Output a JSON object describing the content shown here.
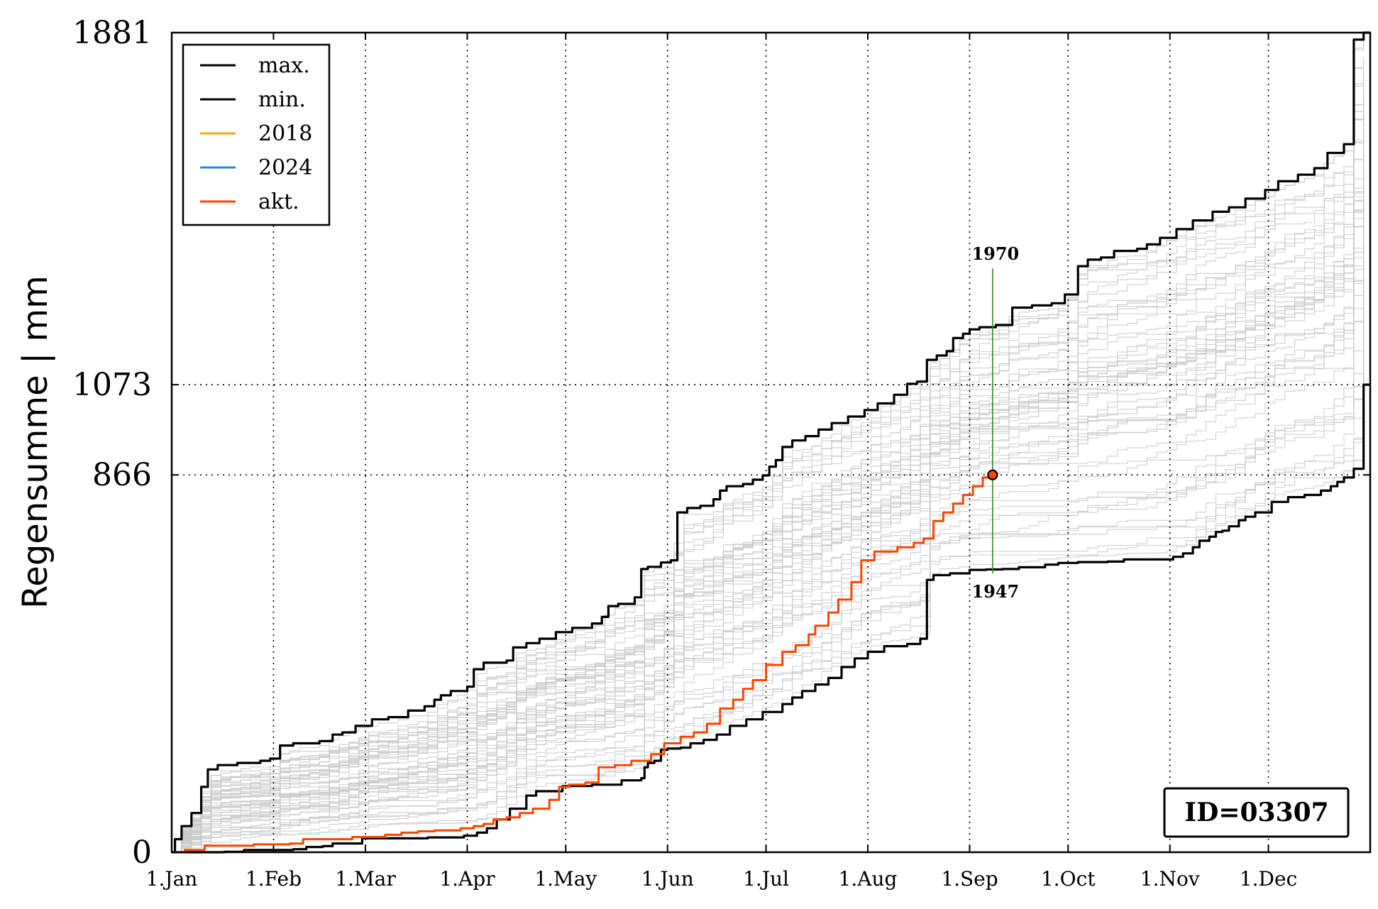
{
  "chart_data": {
    "type": "line",
    "title": "",
    "ylabel": "Regensumme | mm",
    "xlabel": "",
    "xlim": [
      0,
      365
    ],
    "ylim": [
      0,
      1881
    ],
    "yticks": [
      0,
      866,
      1073,
      1881
    ],
    "ytick_labels": [
      "0",
      "866",
      "1073",
      "1881"
    ],
    "xticks": [
      0,
      31,
      59,
      90,
      120,
      151,
      181,
      212,
      243,
      273,
      304,
      334
    ],
    "xtick_labels": [
      "1.Jan",
      "1.Feb",
      "1.Mar",
      "1.Apr",
      "1.May",
      "1.Jun",
      "1.Jul",
      "1.Aug",
      "1.Sep",
      "1.Oct",
      "1.Nov",
      "1.Dec"
    ],
    "grid": true,
    "legend_position": "top-left",
    "legend": [
      {
        "label": "max.",
        "color": "#000000"
      },
      {
        "label": "min.",
        "color": "#000000"
      },
      {
        "label": "2018",
        "color": "#f5a623"
      },
      {
        "label": "2024",
        "color": "#1e88e5"
      },
      {
        "label": "akt.",
        "color": "#ff4500"
      }
    ],
    "series": [
      {
        "name": "max.",
        "color": "#000000",
        "points": [
          [
            0,
            0
          ],
          [
            1,
            30
          ],
          [
            3,
            60
          ],
          [
            6,
            90
          ],
          [
            9,
            150
          ],
          [
            11,
            190
          ],
          [
            14,
            200
          ],
          [
            20,
            205
          ],
          [
            27,
            210
          ],
          [
            30,
            215
          ],
          [
            33,
            245
          ],
          [
            37,
            250
          ],
          [
            45,
            255
          ],
          [
            49,
            270
          ],
          [
            52,
            275
          ],
          [
            56,
            290
          ],
          [
            61,
            305
          ],
          [
            66,
            310
          ],
          [
            72,
            325
          ],
          [
            77,
            335
          ],
          [
            80,
            350
          ],
          [
            82,
            360
          ],
          [
            85,
            370
          ],
          [
            90,
            380
          ],
          [
            92,
            420
          ],
          [
            95,
            435
          ],
          [
            102,
            440
          ],
          [
            104,
            470
          ],
          [
            108,
            480
          ],
          [
            112,
            490
          ],
          [
            117,
            505
          ],
          [
            122,
            515
          ],
          [
            128,
            525
          ],
          [
            131,
            540
          ],
          [
            133,
            565
          ],
          [
            136,
            570
          ],
          [
            141,
            585
          ],
          [
            143,
            650
          ],
          [
            145,
            655
          ],
          [
            149,
            665
          ],
          [
            152,
            670
          ],
          [
            154,
            780
          ],
          [
            157,
            790
          ],
          [
            161,
            795
          ],
          [
            165,
            810
          ],
          [
            167,
            830
          ],
          [
            169,
            840
          ],
          [
            174,
            845
          ],
          [
            177,
            855
          ],
          [
            180,
            865
          ],
          [
            182,
            885
          ],
          [
            184,
            900
          ],
          [
            186,
            930
          ],
          [
            189,
            945
          ],
          [
            193,
            955
          ],
          [
            197,
            970
          ],
          [
            201,
            985
          ],
          [
            206,
            1000
          ],
          [
            211,
            1015
          ],
          [
            215,
            1030
          ],
          [
            220,
            1050
          ],
          [
            224,
            1075
          ],
          [
            227,
            1080
          ],
          [
            230,
            1130
          ],
          [
            233,
            1140
          ],
          [
            236,
            1150
          ],
          [
            238,
            1180
          ],
          [
            241,
            1190
          ],
          [
            243,
            1200
          ],
          [
            246,
            1205
          ],
          [
            251,
            1210
          ],
          [
            256,
            1250
          ],
          [
            262,
            1255
          ],
          [
            268,
            1260
          ],
          [
            272,
            1280
          ],
          [
            276,
            1345
          ],
          [
            279,
            1360
          ],
          [
            283,
            1365
          ],
          [
            287,
            1380
          ],
          [
            294,
            1385
          ],
          [
            297,
            1395
          ],
          [
            301,
            1410
          ],
          [
            306,
            1430
          ],
          [
            311,
            1450
          ],
          [
            317,
            1470
          ],
          [
            322,
            1480
          ],
          [
            327,
            1500
          ],
          [
            333,
            1520
          ],
          [
            337,
            1540
          ],
          [
            343,
            1555
          ],
          [
            348,
            1570
          ],
          [
            352,
            1605
          ],
          [
            357,
            1625
          ],
          [
            360,
            1865
          ],
          [
            363,
            1881
          ],
          [
            365,
            1881
          ]
        ]
      },
      {
        "name": "min.",
        "color": "#000000",
        "points": [
          [
            0,
            0
          ],
          [
            16,
            1
          ],
          [
            22,
            5
          ],
          [
            30,
            5
          ],
          [
            37,
            7
          ],
          [
            41,
            12
          ],
          [
            46,
            14
          ],
          [
            49,
            20
          ],
          [
            58,
            32
          ],
          [
            70,
            32
          ],
          [
            78,
            34
          ],
          [
            89,
            38
          ],
          [
            93,
            45
          ],
          [
            96,
            55
          ],
          [
            99,
            75
          ],
          [
            103,
            100
          ],
          [
            108,
            130
          ],
          [
            111,
            140
          ],
          [
            119,
            152
          ],
          [
            128,
            155
          ],
          [
            132,
            155
          ],
          [
            137,
            165
          ],
          [
            143,
            170
          ],
          [
            144,
            195
          ],
          [
            145,
            205
          ],
          [
            147,
            210
          ],
          [
            149,
            235
          ],
          [
            151,
            238
          ],
          [
            155,
            240
          ],
          [
            158,
            250
          ],
          [
            162,
            258
          ],
          [
            166,
            270
          ],
          [
            170,
            290
          ],
          [
            175,
            305
          ],
          [
            180,
            322
          ],
          [
            186,
            340
          ],
          [
            189,
            355
          ],
          [
            192,
            370
          ],
          [
            196,
            385
          ],
          [
            200,
            400
          ],
          [
            204,
            425
          ],
          [
            208,
            445
          ],
          [
            212,
            460
          ],
          [
            217,
            473
          ],
          [
            224,
            478
          ],
          [
            228,
            490
          ],
          [
            230,
            625
          ],
          [
            232,
            636
          ],
          [
            237,
            640
          ],
          [
            243,
            648
          ],
          [
            248,
            649
          ],
          [
            253,
            650
          ],
          [
            258,
            654
          ],
          [
            266,
            660
          ],
          [
            270,
            664
          ],
          [
            276,
            666
          ],
          [
            285,
            667
          ],
          [
            290,
            672
          ],
          [
            300,
            672
          ],
          [
            305,
            678
          ],
          [
            308,
            686
          ],
          [
            311,
            700
          ],
          [
            313,
            715
          ],
          [
            316,
            724
          ],
          [
            318,
            735
          ],
          [
            320,
            738
          ],
          [
            322,
            748
          ],
          [
            325,
            762
          ],
          [
            327,
            770
          ],
          [
            330,
            780
          ],
          [
            335,
            804
          ],
          [
            340,
            815
          ],
          [
            345,
            820
          ],
          [
            350,
            830
          ],
          [
            353,
            840
          ],
          [
            355,
            850
          ],
          [
            357,
            860
          ],
          [
            360,
            880
          ],
          [
            363,
            1073
          ],
          [
            365,
            1073
          ]
        ]
      },
      {
        "name": "akt.",
        "color": "#ff4500",
        "points": [
          [
            0,
            0
          ],
          [
            4,
            5
          ],
          [
            10,
            15
          ],
          [
            25,
            18
          ],
          [
            36,
            20
          ],
          [
            40,
            30
          ],
          [
            55,
            35
          ],
          [
            65,
            40
          ],
          [
            70,
            45
          ],
          [
            75,
            48
          ],
          [
            80,
            50
          ],
          [
            88,
            55
          ],
          [
            92,
            60
          ],
          [
            95,
            65
          ],
          [
            98,
            75
          ],
          [
            102,
            80
          ],
          [
            106,
            90
          ],
          [
            110,
            100
          ],
          [
            115,
            120
          ],
          [
            118,
            150
          ],
          [
            121,
            155
          ],
          [
            126,
            160
          ],
          [
            130,
            195
          ],
          [
            135,
            200
          ],
          [
            140,
            210
          ],
          [
            146,
            225
          ],
          [
            150,
            250
          ],
          [
            155,
            265
          ],
          [
            159,
            275
          ],
          [
            163,
            295
          ],
          [
            167,
            330
          ],
          [
            171,
            350
          ],
          [
            174,
            375
          ],
          [
            177,
            395
          ],
          [
            181,
            430
          ],
          [
            186,
            460
          ],
          [
            190,
            475
          ],
          [
            194,
            500
          ],
          [
            196,
            520
          ],
          [
            200,
            550
          ],
          [
            203,
            580
          ],
          [
            207,
            620
          ],
          [
            210,
            670
          ],
          [
            214,
            690
          ],
          [
            221,
            700
          ],
          [
            226,
            710
          ],
          [
            229,
            720
          ],
          [
            232,
            760
          ],
          [
            235,
            780
          ],
          [
            238,
            800
          ],
          [
            241,
            820
          ],
          [
            244,
            840
          ],
          [
            247,
            860
          ],
          [
            250,
            866
          ]
        ]
      }
    ],
    "marker": {
      "x": 250,
      "y": 866,
      "color": "#ff4500"
    },
    "vline": {
      "x": 250,
      "y_from": 640,
      "y_to": 1340,
      "color": "#2e8b2e"
    },
    "annotations": [
      {
        "text": "1970",
        "x": 250,
        "y": 1340
      },
      {
        "text": "1947",
        "x": 250,
        "y": 640
      }
    ],
    "background_lines_color": "#c8c8c8",
    "id_box_text": "ID=03307"
  }
}
